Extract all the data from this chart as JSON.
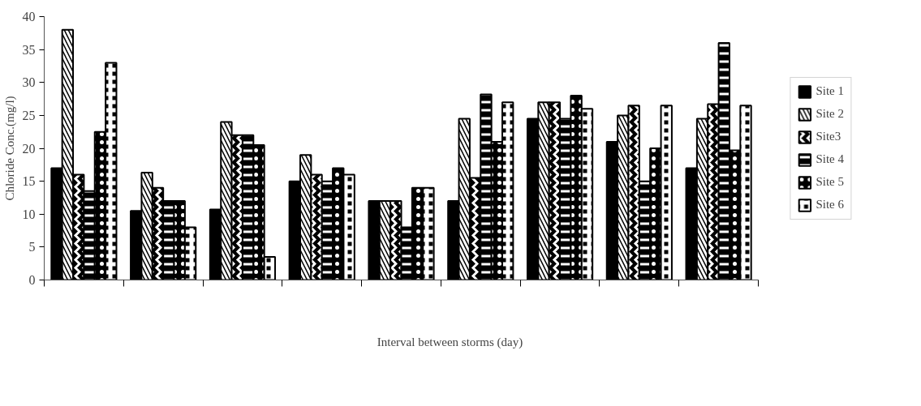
{
  "chart_data": {
    "type": "bar",
    "xlabel": "Interval between storms (day)",
    "ylabel": "Chloride Conc.(mg/l)",
    "categories": [
      null,
      null,
      null,
      null,
      null,
      null,
      null,
      null,
      null
    ],
    "series": [
      {
        "name": "Site 1",
        "color": "#000000",
        "values": [
          17,
          10.5,
          10.7,
          15,
          12,
          12,
          24.5,
          21,
          17
        ]
      },
      {
        "name": "Site 2",
        "color": "#000000",
        "values": [
          38,
          16.3,
          24,
          19,
          12,
          24.5,
          27,
          25,
          24.5
        ]
      },
      {
        "name": "Site3",
        "color": "#000000",
        "values": [
          16,
          14,
          22,
          16,
          12,
          15.5,
          27,
          26.5,
          26.7
        ]
      },
      {
        "name": "Site 4",
        "color": "#000000",
        "values": [
          13.5,
          12,
          22,
          15,
          8,
          28.2,
          24.5,
          15,
          36
        ]
      },
      {
        "name": "Site 5",
        "color": "#000000",
        "values": [
          22.5,
          12,
          20.5,
          17,
          14,
          21,
          28,
          20,
          19.7
        ]
      },
      {
        "name": "Site 6",
        "color": "#000000",
        "values": [
          33,
          8,
          3.5,
          16,
          14,
          27,
          26,
          26.5,
          26.5
        ]
      }
    ],
    "ylim": [
      0,
      40
    ],
    "yticks": [
      0,
      5,
      10,
      15,
      20,
      25,
      30,
      35,
      40
    ],
    "grid": false,
    "legend": "right"
  }
}
